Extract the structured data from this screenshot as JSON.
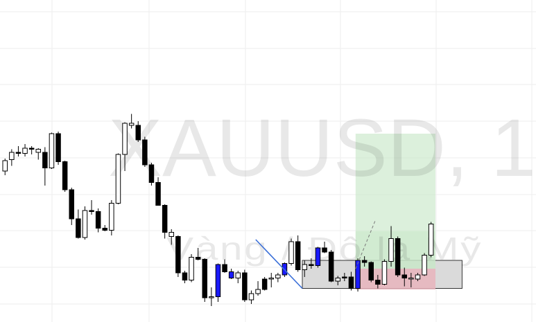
{
  "watermark": {
    "symbol": "XAUUSD, 1",
    "description": "Vàng / Đô la Mỹ"
  },
  "colors": {
    "background": "#ffffff",
    "grid": "#ededed",
    "candle_up_fill": "#ffffff",
    "candle_up_border": "#000000",
    "candle_down_fill": "#000000",
    "candle_highlight_fill": "#1a1aff",
    "wick": "#000000",
    "profit_zone": "#c9e8c9",
    "loss_zone": "#e8b4bc",
    "range_box": "#d6d6d6",
    "trend_line": "#3a6fd8",
    "projection_line": "#7a7a7a"
  },
  "chart_data": {
    "type": "candlestick",
    "timeframe": "1",
    "symbol": "XAUUSD",
    "candles": [
      {
        "o": 22.0,
        "h": 34.0,
        "l": 18.0,
        "c": 32.0,
        "color": "up"
      },
      {
        "o": 33.0,
        "h": 43.0,
        "l": 27.0,
        "c": 40.0,
        "color": "up"
      },
      {
        "o": 40.0,
        "h": 46.0,
        "l": 36.0,
        "c": 39.0,
        "color": "down"
      },
      {
        "o": 39.0,
        "h": 48.0,
        "l": 36.0,
        "c": 44.0,
        "color": "up"
      },
      {
        "o": 44.0,
        "h": 46.0,
        "l": 38.0,
        "c": 43.0,
        "color": "down"
      },
      {
        "o": 43.0,
        "h": 44.0,
        "l": 33.0,
        "c": 40.0,
        "color": "up"
      },
      {
        "o": 40.0,
        "h": 45.0,
        "l": 8.0,
        "c": 25.0,
        "color": "down"
      },
      {
        "o": 25.0,
        "h": 59.0,
        "l": 24.0,
        "c": 58.0,
        "color": "up"
      },
      {
        "o": 58.0,
        "h": 60.0,
        "l": 28.0,
        "c": 31.0,
        "color": "down"
      },
      {
        "o": 31.0,
        "h": 32.0,
        "l": 2.0,
        "c": 4.0,
        "color": "down"
      },
      {
        "o": 4.0,
        "h": 6.0,
        "l": -30.0,
        "c": -24.0,
        "color": "down"
      },
      {
        "o": -24.0,
        "h": -15.0,
        "l": -43.0,
        "c": -42.0,
        "color": "down"
      },
      {
        "o": -42.0,
        "h": -12.0,
        "l": -44.0,
        "c": -16.0,
        "color": "up"
      },
      {
        "o": -16.0,
        "h": -6.0,
        "l": -20.0,
        "c": -17.0,
        "color": "down"
      },
      {
        "o": -17.0,
        "h": -14.0,
        "l": -37.0,
        "c": -33.0,
        "color": "down"
      },
      {
        "o": -33.0,
        "h": -30.0,
        "l": -36.0,
        "c": -35.0,
        "color": "down"
      },
      {
        "o": -35.0,
        "h": -6.0,
        "l": -40.0,
        "c": -9.0,
        "color": "up"
      },
      {
        "o": -9.0,
        "h": 39.0,
        "l": -10.0,
        "c": 38.0,
        "color": "up"
      },
      {
        "o": 38.0,
        "h": 69.0,
        "l": 22.0,
        "c": 68.0,
        "color": "up"
      },
      {
        "o": 68.0,
        "h": 77.0,
        "l": 63.0,
        "c": 66.0,
        "color": "up"
      },
      {
        "o": 66.0,
        "h": 70.0,
        "l": 50.0,
        "c": 52.0,
        "color": "down"
      },
      {
        "o": 52.0,
        "h": 55.0,
        "l": 26.0,
        "c": 28.0,
        "color": "down"
      },
      {
        "o": 28.0,
        "h": 30.0,
        "l": 8.0,
        "c": 11.0,
        "color": "down"
      },
      {
        "o": 11.0,
        "h": 16.0,
        "l": -10.0,
        "c": -11.0,
        "color": "down"
      },
      {
        "o": -11.0,
        "h": -10.0,
        "l": -43.0,
        "c": -37.0,
        "color": "down"
      },
      {
        "o": -37.0,
        "h": -34.0,
        "l": -49.0,
        "c": -41.0,
        "color": "up"
      },
      {
        "o": -41.0,
        "h": -40.0,
        "l": -80.0,
        "c": -76.0,
        "color": "down"
      },
      {
        "o": -76.0,
        "h": -74.0,
        "l": -86.0,
        "c": -83.0,
        "color": "down"
      },
      {
        "o": -83.0,
        "h": -58.0,
        "l": -85.0,
        "c": -61.0,
        "color": "up"
      },
      {
        "o": -61.0,
        "h": -52.0,
        "l": -64.0,
        "c": -63.0,
        "color": "down"
      },
      {
        "o": -63.0,
        "h": -62.0,
        "l": -104.0,
        "c": -100.0,
        "color": "down"
      },
      {
        "o": -100.0,
        "h": -90.0,
        "l": -108.0,
        "c": -99.0,
        "color": "up"
      },
      {
        "o": -99.0,
        "h": -67.0,
        "l": -104.0,
        "c": -68.0,
        "color": "blue"
      },
      {
        "o": -68.0,
        "h": -63.0,
        "l": -76.0,
        "c": -75.0,
        "color": "down"
      },
      {
        "o": -75.0,
        "h": -72.0,
        "l": -82.0,
        "c": -81.0,
        "color": "blue"
      },
      {
        "o": -81.0,
        "h": -74.0,
        "l": -86.0,
        "c": -76.0,
        "color": "up"
      },
      {
        "o": -76.0,
        "h": -73.0,
        "l": -104.0,
        "c": -102.0,
        "color": "down"
      },
      {
        "o": -102.0,
        "h": -93.0,
        "l": -106.0,
        "c": -96.0,
        "color": "up"
      },
      {
        "o": -96.0,
        "h": -84.0,
        "l": -98.0,
        "c": -92.0,
        "color": "up"
      },
      {
        "o": -92.0,
        "h": -80.0,
        "l": -93.0,
        "c": -82.0,
        "color": "down"
      },
      {
        "o": -82.0,
        "h": -76.0,
        "l": -90.0,
        "c": -81.0,
        "color": "up"
      },
      {
        "o": -81.0,
        "h": -76.0,
        "l": -85.0,
        "c": -78.0,
        "color": "up"
      },
      {
        "o": -78.0,
        "h": -66.0,
        "l": -80.0,
        "c": -67.0,
        "color": "blue"
      },
      {
        "o": -67.0,
        "h": -43.0,
        "l": -69.0,
        "c": -46.0,
        "color": "up"
      },
      {
        "o": -46.0,
        "h": -40.0,
        "l": -75.0,
        "c": -73.0,
        "color": "down"
      },
      {
        "o": -73.0,
        "h": -64.0,
        "l": -80.0,
        "c": -68.0,
        "color": "up"
      },
      {
        "o": -68.0,
        "h": -62.0,
        "l": -72.0,
        "c": -69.0,
        "color": "down"
      },
      {
        "o": -69.0,
        "h": -51.0,
        "l": -71.0,
        "c": -52.0,
        "color": "blue"
      },
      {
        "o": -52.0,
        "h": -46.0,
        "l": -57.0,
        "c": -56.0,
        "color": "down"
      },
      {
        "o": -56.0,
        "h": -54.0,
        "l": -85.0,
        "c": -84.0,
        "color": "down"
      },
      {
        "o": -84.0,
        "h": -79.0,
        "l": -88.0,
        "c": -81.0,
        "color": "up"
      },
      {
        "o": -81.0,
        "h": -76.0,
        "l": -84.0,
        "c": -80.0,
        "color": "down"
      },
      {
        "o": -80.0,
        "h": -75.0,
        "l": -93.0,
        "c": -91.0,
        "color": "down"
      },
      {
        "o": -91.0,
        "h": -62.0,
        "l": -94.0,
        "c": -64.0,
        "color": "blue"
      },
      {
        "o": -64.0,
        "h": -60.0,
        "l": -70.0,
        "c": -66.0,
        "color": "down"
      },
      {
        "o": -66.0,
        "h": -65.0,
        "l": -85.0,
        "c": -83.0,
        "color": "down"
      },
      {
        "o": -83.0,
        "h": -78.0,
        "l": -91.0,
        "c": -87.0,
        "color": "down"
      },
      {
        "o": -87.0,
        "h": -63.0,
        "l": -88.0,
        "c": -65.0,
        "color": "up"
      },
      {
        "o": -65.0,
        "h": -31.0,
        "l": -70.0,
        "c": -43.0,
        "color": "up"
      },
      {
        "o": -43.0,
        "h": -41.0,
        "l": -80.0,
        "c": -78.0,
        "color": "down"
      },
      {
        "o": -78.0,
        "h": -71.0,
        "l": -89.0,
        "c": -81.0,
        "color": "down"
      },
      {
        "o": -81.0,
        "h": -76.0,
        "l": -90.0,
        "c": -82.0,
        "color": "up"
      },
      {
        "o": -82.0,
        "h": -76.0,
        "l": -84.0,
        "c": -78.0,
        "color": "up"
      },
      {
        "o": -78.0,
        "h": -57.0,
        "l": -79.0,
        "c": -59.0,
        "color": "up"
      },
      {
        "o": -59.0,
        "h": -27.0,
        "l": -61.0,
        "c": -29.0,
        "color": "up"
      }
    ],
    "drawings": {
      "trend_line": {
        "from_candle": 38,
        "from_price": -44.0,
        "to_candle": 45,
        "to_price": -91.0
      },
      "range_box": {
        "from_candle": 45,
        "to_candle": 69,
        "top": -64.0,
        "bottom": -91.0
      },
      "profit_zone": {
        "from_candle": 53,
        "to_candle": 65,
        "top": 58.0,
        "bottom": -72.0,
        "darker_below": -36.0
      },
      "loss_zone": {
        "from_candle": 53,
        "to_candle": 65,
        "top": -72.0,
        "bottom": -92.0
      },
      "projection": {
        "from_candle": 53,
        "from_price": -72.0,
        "to_candle": 56,
        "to_price": -25.0
      }
    }
  }
}
